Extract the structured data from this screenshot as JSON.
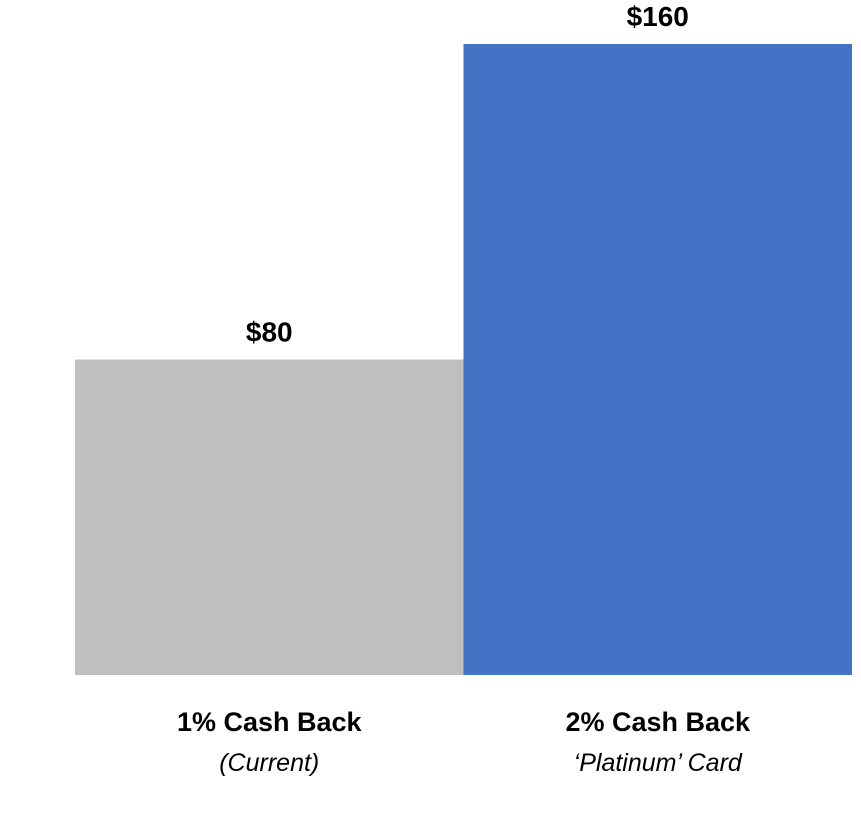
{
  "chart_data": {
    "type": "bar",
    "categories": [
      {
        "main": "1% Cash Back",
        "sub": "(Current)"
      },
      {
        "main": "2% Cash Back",
        "sub": "‘Platinum’ Card"
      }
    ],
    "values": [
      80,
      160
    ],
    "value_labels": [
      "$80",
      "$160"
    ],
    "colors": [
      "#bfbfbf",
      "#4472c4"
    ],
    "ylim": [
      0,
      160
    ],
    "grid": false,
    "legend": "none"
  }
}
